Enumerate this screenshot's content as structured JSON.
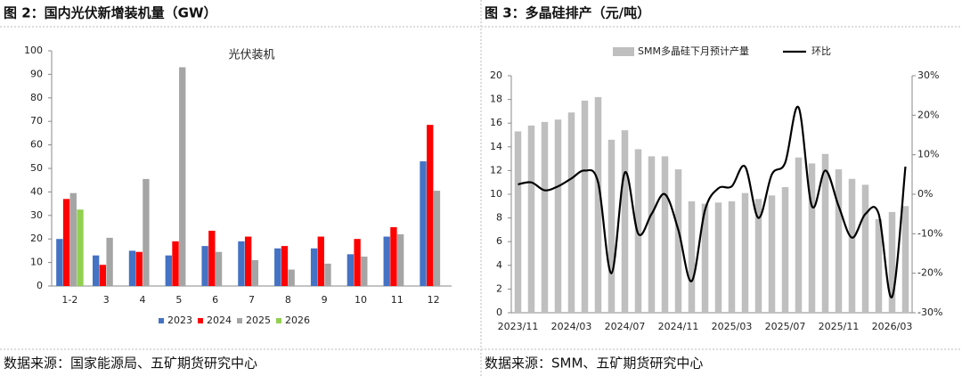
{
  "chart_data": [
    {
      "type": "bar",
      "title": "图 2：国内光伏新增装机量（GW）",
      "subtitle": "光伏装机",
      "source": "数据来源：国家能源局、五矿期货研究中心",
      "categories": [
        "1-2",
        "3",
        "4",
        "5",
        "6",
        "7",
        "8",
        "9",
        "10",
        "11",
        "12"
      ],
      "series": [
        {
          "name": "2023",
          "color": "#4472c4",
          "values": [
            20,
            13,
            15,
            13,
            17,
            19,
            16,
            16,
            13.5,
            21,
            53
          ]
        },
        {
          "name": "2024",
          "color": "#ff0000",
          "values": [
            37,
            9,
            14.5,
            19,
            23.5,
            21,
            17,
            21,
            20,
            25,
            68.5
          ]
        },
        {
          "name": "2025",
          "color": "#a5a5a5",
          "values": [
            39.5,
            20.5,
            45.5,
            93,
            14.5,
            11,
            7,
            9.5,
            12.5,
            22,
            40.5
          ]
        },
        {
          "name": "2026",
          "color": "#92d050",
          "values": [
            32.5,
            null,
            null,
            null,
            null,
            null,
            null,
            null,
            null,
            null,
            null
          ]
        }
      ],
      "ylim": [
        0,
        100
      ],
      "yticks": [
        0,
        10,
        20,
        30,
        40,
        50,
        60,
        70,
        80,
        90,
        100
      ],
      "grid": false,
      "legend": "bottom"
    },
    {
      "type": "bar",
      "title": "图 3：多晶硅排产（元/吨）",
      "source": "数据来源：SMM、五矿期货研究中心",
      "categories": [
        "2023/11",
        null,
        null,
        null,
        "2024/03",
        null,
        null,
        null,
        "2024/07",
        null,
        null,
        null,
        "2024/11",
        null,
        null,
        null,
        "2025/03",
        null,
        null,
        null,
        "2025/07",
        null,
        null,
        null,
        "2025/11",
        null,
        null,
        null,
        "2026/03",
        null
      ],
      "series": [
        {
          "name": "SMM多晶硅下月预计产量",
          "color": "#bfbfbf",
          "axis": "y",
          "values": [
            15.3,
            15.8,
            16.1,
            16.3,
            16.9,
            17.9,
            18.2,
            14.6,
            15.4,
            13.8,
            13.2,
            13.2,
            12.1,
            9.4,
            9.2,
            9.3,
            9.4,
            10.1,
            9.6,
            9.9,
            10.6,
            13.1,
            12.6,
            13.4,
            12.1,
            11.3,
            10.8,
            7.9,
            8.5,
            9.0
          ]
        },
        {
          "name": "环比",
          "color": "#000000",
          "type": "line",
          "axis": "y2",
          "values": [
            2.5,
            3,
            1,
            2,
            4,
            6,
            3,
            -20,
            5.5,
            -10,
            -5,
            0,
            -9,
            -22,
            -4,
            1.5,
            2,
            7,
            -6,
            5,
            8,
            22,
            -3,
            6,
            -3,
            -11,
            -5,
            -5,
            -26,
            7
          ]
        }
      ],
      "ylim": [
        0,
        20
      ],
      "yticks": [
        0,
        2,
        4,
        6,
        8,
        10,
        12,
        14,
        16,
        18,
        20
      ],
      "y2lim": [
        -30,
        30
      ],
      "y2ticks": [
        {
          "value": -30,
          "label": "-30%"
        },
        {
          "value": -20,
          "label": "-20%"
        },
        {
          "value": -10,
          "label": "-10%"
        },
        {
          "value": 0,
          "label": "0%"
        },
        {
          "value": 10,
          "label": "10%"
        },
        {
          "value": 20,
          "label": "20%"
        },
        {
          "value": 30,
          "label": "30%"
        }
      ],
      "grid": false,
      "legend": "top"
    }
  ]
}
